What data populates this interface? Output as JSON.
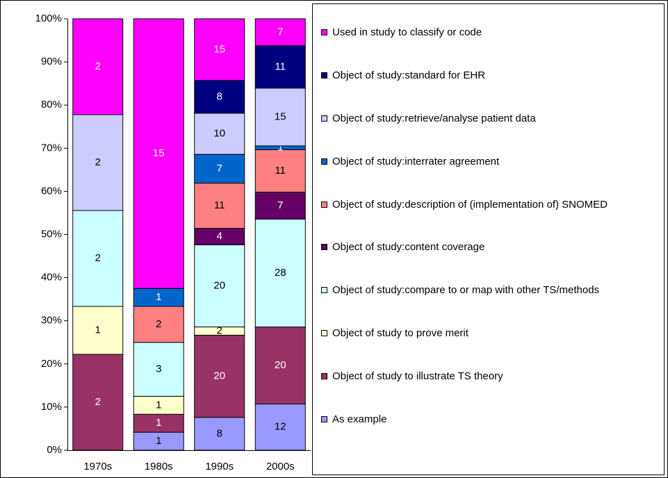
{
  "chart_data": {
    "type": "bar",
    "stacking": "percent",
    "categories": [
      "1970s",
      "1980s",
      "1990s",
      "2000s"
    ],
    "series": [
      {
        "name": "As example",
        "color": "#9999ff",
        "values": [
          0,
          1,
          8,
          12
        ]
      },
      {
        "name": "Object of study to illustrate TS theory",
        "color": "#993366",
        "values": [
          2,
          1,
          20,
          20
        ]
      },
      {
        "name": "Object of study to prove merit",
        "color": "#ffffcc",
        "values": [
          1,
          1,
          2,
          0
        ]
      },
      {
        "name": "Object of study:compare to or map with other TS/methods",
        "color": "#ccffff",
        "values": [
          2,
          3,
          20,
          28
        ]
      },
      {
        "name": "Object of study:content coverage",
        "color": "#660066",
        "values": [
          0,
          0,
          4,
          7
        ]
      },
      {
        "name": "Object of study:description of (implementation of) SNOMED",
        "color": "#ff8080",
        "values": [
          0,
          2,
          11,
          11
        ]
      },
      {
        "name": "Object of study:interrater agreement",
        "color": "#0066cc",
        "values": [
          0,
          1,
          7,
          1
        ]
      },
      {
        "name": "Object of study:retrieve/analyse patient data",
        "color": "#ccccff",
        "values": [
          2,
          0,
          10,
          15
        ]
      },
      {
        "name": "Object of study:standard for EHR",
        "color": "#000080",
        "values": [
          0,
          0,
          8,
          11
        ]
      },
      {
        "name": "Used in study to classify or code",
        "color": "#ff00ff",
        "values": [
          2,
          15,
          15,
          7
        ]
      }
    ],
    "ylim": [
      0,
      100
    ],
    "yticks": [
      {
        "value": 0,
        "label": "0%"
      },
      {
        "value": 10,
        "label": "10%"
      },
      {
        "value": 20,
        "label": "20%"
      },
      {
        "value": 30,
        "label": "30%"
      },
      {
        "value": 40,
        "label": "40%"
      },
      {
        "value": 50,
        "label": "50%"
      },
      {
        "value": 60,
        "label": "60%"
      },
      {
        "value": 70,
        "label": "70%"
      },
      {
        "value": 80,
        "label": "80%"
      },
      {
        "value": 90,
        "label": "90%"
      },
      {
        "value": 100,
        "label": "100%"
      }
    ],
    "grid": false,
    "legend": "right"
  }
}
